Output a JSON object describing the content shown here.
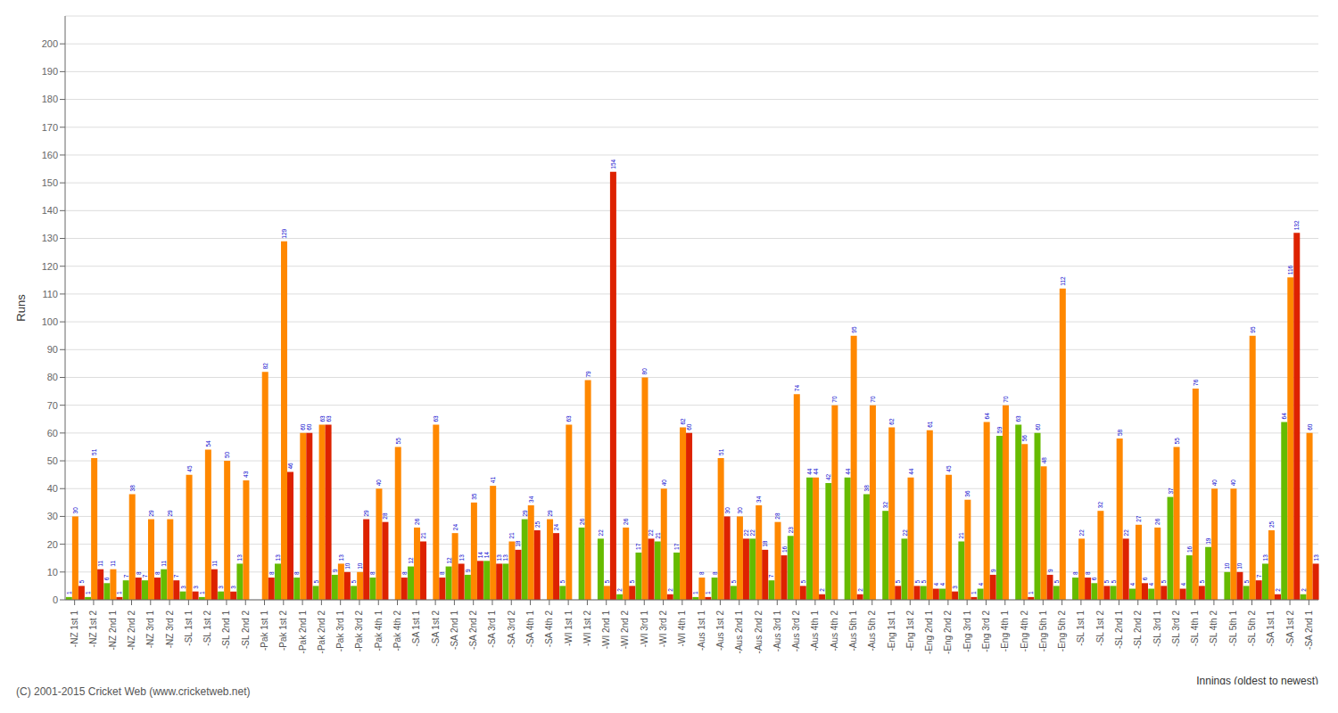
{
  "chart_data": {
    "type": "bar",
    "ylabel": "Runs",
    "xlabel": "Innings (oldest to newest)",
    "annotations": [
      "(C) 2001-2015 Cricket Web (www.cricketweb.net)"
    ],
    "categories": [
      "-NZ 1st 1",
      "-NZ 1st 2",
      "-NZ 2nd 1",
      "-NZ 2nd 2",
      "-NZ 3rd 1",
      "-NZ 3rd 2",
      "-SL 1st 1",
      "-SL 1st 2",
      "-SL 2nd 1",
      "-SL 2nd 2",
      "-Pak 1st 1",
      "-Pak 1st 2",
      "-Pak 2nd 1",
      "-Pak 2nd 2",
      "-Pak 3rd 1",
      "-Pak 3rd 2",
      "-Pak 4th 1",
      "-Pak 4th 2",
      "-SA 1st 1",
      "-SA 1st 2",
      "-SA 2nd 1",
      "-SA 2nd 2",
      "-SA 3rd 1",
      "-SA 3rd 2",
      "-SA 4th 1",
      "-SA 4th 2",
      "-WI 1st 1",
      "-WI 1st 2",
      "-WI 2nd 1",
      "-WI 2nd 2",
      "-WI 3rd 1",
      "-WI 3rd 2",
      "-WI 4th 1",
      "-Aus 1st 1",
      "-Aus 1st 2",
      "-Aus 2nd 1",
      "-Aus 2nd 2",
      "-Aus 3rd 1",
      "-Aus 3rd 2",
      "-Aus 4th 1",
      "-Aus 4th 2",
      "-Aus 5th 1",
      "-Aus 5th 2",
      "-Eng 1st 1",
      "-Eng 1st 2",
      "-Eng 2nd 1",
      "-Eng 2nd 2",
      "-Eng 3rd 1",
      "-Eng 3rd 2",
      "-Eng 4th 1",
      "-Eng 4th 2",
      "-Eng 5th 1",
      "-Eng 5th 2",
      "-SL 1st 1",
      "-SL 1st 2",
      "-SL 2nd 1",
      "-SL 2nd 2",
      "-SL 3rd 1",
      "-SL 3rd 2",
      "-SL 4th 1",
      "-SL 4th 2",
      "-SL 5th 1",
      "-SL 5th 2",
      "-SA 1st 1",
      "-SA 1st 2",
      "-SA 2nd 1"
    ],
    "series": [
      {
        "color": "#66bb00",
        "values": [
          1,
          1,
          6,
          7,
          7,
          11,
          3,
          1,
          3,
          13,
          0,
          13,
          8,
          5,
          9,
          5,
          8,
          0,
          12,
          0,
          12,
          9,
          14,
          13,
          29,
          0,
          5,
          26,
          22,
          2,
          17,
          21,
          17,
          1,
          8,
          5,
          22,
          7,
          23,
          44,
          42,
          44,
          38,
          32,
          22,
          5,
          4,
          21,
          4,
          59,
          63,
          60,
          5,
          8,
          6,
          5,
          4,
          4,
          37,
          16,
          19,
          10,
          5,
          13,
          64,
          2
        ]
      },
      {
        "color": "#ff8800",
        "values": [
          30,
          51,
          11,
          38,
          29,
          29,
          45,
          54,
          50,
          43,
          82,
          129,
          60,
          63,
          13,
          10,
          40,
          55,
          26,
          63,
          24,
          35,
          41,
          21,
          34,
          29,
          63,
          79,
          5,
          26,
          80,
          40,
          62,
          8,
          51,
          30,
          34,
          28,
          74,
          44,
          70,
          95,
          70,
          62,
          44,
          61,
          45,
          36,
          64,
          70,
          56,
          48,
          112,
          22,
          32,
          58,
          27,
          26,
          55,
          76,
          40,
          40,
          95,
          25,
          116,
          60
        ]
      },
      {
        "color": "#dd2200",
        "values": [
          5,
          11,
          1,
          8,
          8,
          7,
          3,
          11,
          3,
          0,
          8,
          46,
          60,
          63,
          10,
          29,
          28,
          8,
          21,
          8,
          13,
          14,
          13,
          18,
          25,
          24,
          0,
          0,
          154,
          5,
          22,
          2,
          60,
          1,
          30,
          22,
          18,
          16,
          5,
          2,
          0,
          2,
          0,
          5,
          5,
          4,
          3,
          1,
          9,
          0,
          1,
          9,
          0,
          8,
          5,
          22,
          6,
          5,
          4,
          5,
          0,
          10,
          7,
          2,
          132,
          13
        ]
      }
    ],
    "ylim": [
      0,
      210
    ],
    "yticks": [
      0,
      10,
      20,
      30,
      40,
      50,
      60,
      70,
      80,
      90,
      100,
      110,
      120,
      130,
      140,
      150,
      160,
      170,
      180,
      190,
      200
    ],
    "grid": true,
    "data_labels": true
  }
}
